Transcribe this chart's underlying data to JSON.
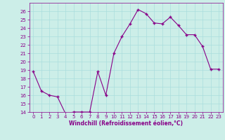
{
  "x": [
    0,
    1,
    2,
    3,
    4,
    5,
    6,
    7,
    8,
    9,
    10,
    11,
    12,
    13,
    14,
    15,
    16,
    17,
    18,
    19,
    20,
    21,
    22,
    23
  ],
  "y": [
    18.8,
    16.5,
    16.0,
    15.8,
    13.8,
    14.0,
    14.0,
    14.0,
    18.8,
    16.0,
    21.0,
    23.0,
    24.5,
    26.2,
    25.7,
    24.6,
    24.5,
    25.3,
    24.3,
    23.2,
    23.2,
    21.8,
    19.1,
    19.1
  ],
  "line_color": "#880088",
  "marker": "+",
  "marker_color": "#880088",
  "bg_color": "#cceee8",
  "grid_color": "#aadddd",
  "xlabel": "Windchill (Refroidissement éolien,°C)",
  "xlabel_color": "#880088",
  "tick_color": "#880088",
  "ylim": [
    14,
    27
  ],
  "xlim": [
    -0.5,
    23.5
  ],
  "yticks": [
    14,
    15,
    16,
    17,
    18,
    19,
    20,
    21,
    22,
    23,
    24,
    25,
    26
  ],
  "xticks": [
    0,
    1,
    2,
    3,
    4,
    5,
    6,
    7,
    8,
    9,
    10,
    11,
    12,
    13,
    14,
    15,
    16,
    17,
    18,
    19,
    20,
    21,
    22,
    23
  ],
  "tick_fontsize": 5.0,
  "xlabel_fontsize": 5.5
}
